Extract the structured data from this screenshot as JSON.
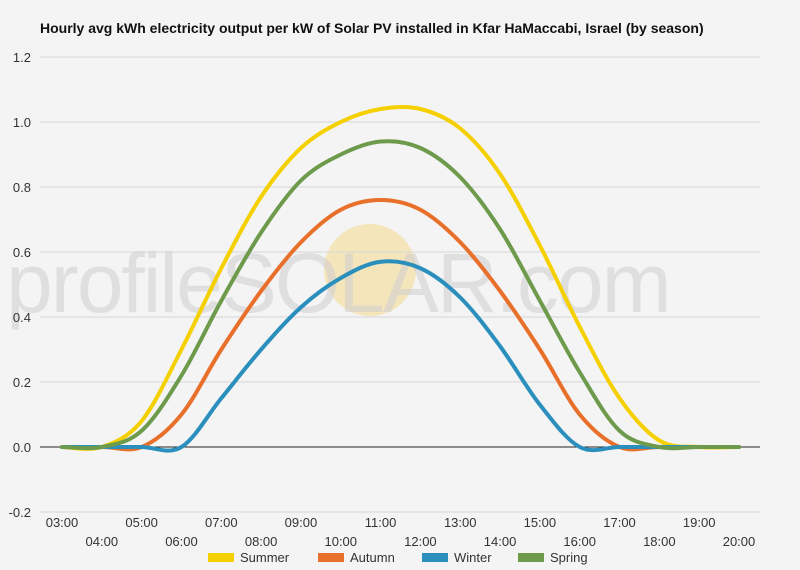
{
  "chart_data": {
    "type": "line",
    "title": "Hourly avg kWh electricity output per kW of Solar PV installed in Kfar HaMaccabi, Israel (by season)",
    "watermark": "profileSOLAR.com",
    "xlabel": "",
    "ylabel": "",
    "ylim": [
      -0.2,
      1.2
    ],
    "yticks": [
      "-0.2",
      "0.0",
      "0.2",
      "0.4",
      "0.6",
      "0.8",
      "1.0",
      "1.2"
    ],
    "grid": true,
    "legend_position": "bottom",
    "categories": [
      "03:00",
      "04:00",
      "05:00",
      "06:00",
      "07:00",
      "08:00",
      "09:00",
      "10:00",
      "11:00",
      "12:00",
      "13:00",
      "14:00",
      "15:00",
      "16:00",
      "17:00",
      "18:00",
      "19:00",
      "20:00"
    ],
    "series": [
      {
        "name": "Summer",
        "color": "#f5d000",
        "values": [
          0.0,
          0.0,
          0.08,
          0.3,
          0.55,
          0.77,
          0.92,
          1.0,
          1.04,
          1.04,
          0.98,
          0.84,
          0.62,
          0.37,
          0.15,
          0.02,
          0.0,
          0.0
        ]
      },
      {
        "name": "Autumn",
        "color": "#e8702a",
        "values": [
          0.0,
          0.0,
          0.0,
          0.1,
          0.3,
          0.48,
          0.63,
          0.73,
          0.76,
          0.73,
          0.63,
          0.48,
          0.3,
          0.1,
          0.0,
          0.0,
          0.0,
          0.0
        ]
      },
      {
        "name": "Winter",
        "color": "#2b8fbd",
        "values": [
          0.0,
          0.0,
          0.0,
          0.0,
          0.15,
          0.3,
          0.43,
          0.52,
          0.57,
          0.55,
          0.46,
          0.31,
          0.13,
          0.0,
          0.0,
          0.0,
          0.0,
          0.0
        ]
      },
      {
        "name": "Spring",
        "color": "#6e9a4c",
        "values": [
          0.0,
          0.0,
          0.05,
          0.22,
          0.45,
          0.66,
          0.82,
          0.9,
          0.94,
          0.92,
          0.83,
          0.67,
          0.45,
          0.23,
          0.05,
          0.0,
          0.0,
          0.0
        ]
      }
    ]
  }
}
